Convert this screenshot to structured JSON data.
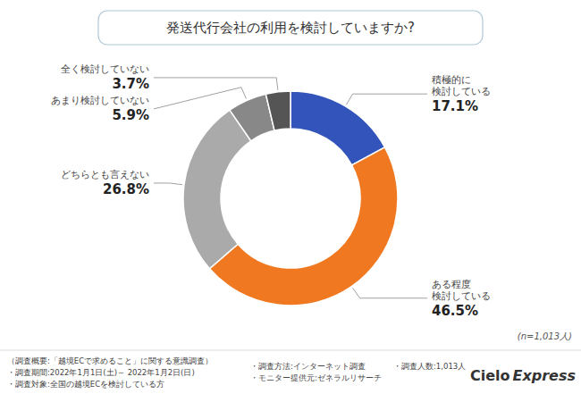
{
  "chart_data": {
    "type": "donut",
    "title": "発送代行会社の利用を検討していますか?",
    "categories": [
      "積極的に\n検討している",
      "ある程度\n検討している",
      "どちらとも言えない",
      "あまり検討していない",
      "全く検討していない"
    ],
    "values": [
      17.1,
      46.5,
      26.8,
      5.9,
      3.7
    ],
    "value_labels": [
      "17.1%",
      "46.5%",
      "26.8%",
      "5.9%",
      "3.7%"
    ],
    "data_labels": true,
    "colors": [
      "#3355bb",
      "#f07820",
      "#aaaaaa",
      "#888888",
      "#555555"
    ],
    "annotations": [
      "(n=1,013人)",
      "（調査概要:「越境ECで求めること」に関する意識調査）",
      "・調査期間:2022年1月1日(土)～ 2022年1月2日(日)",
      "・調査対象:全国の越境ECを検討している方",
      "・調査方法:インターネット調査",
      "・モニター提供元:ゼネラルリサーチ",
      "・調査人数:1,013人",
      "Cielo",
      "Express"
    ]
  }
}
